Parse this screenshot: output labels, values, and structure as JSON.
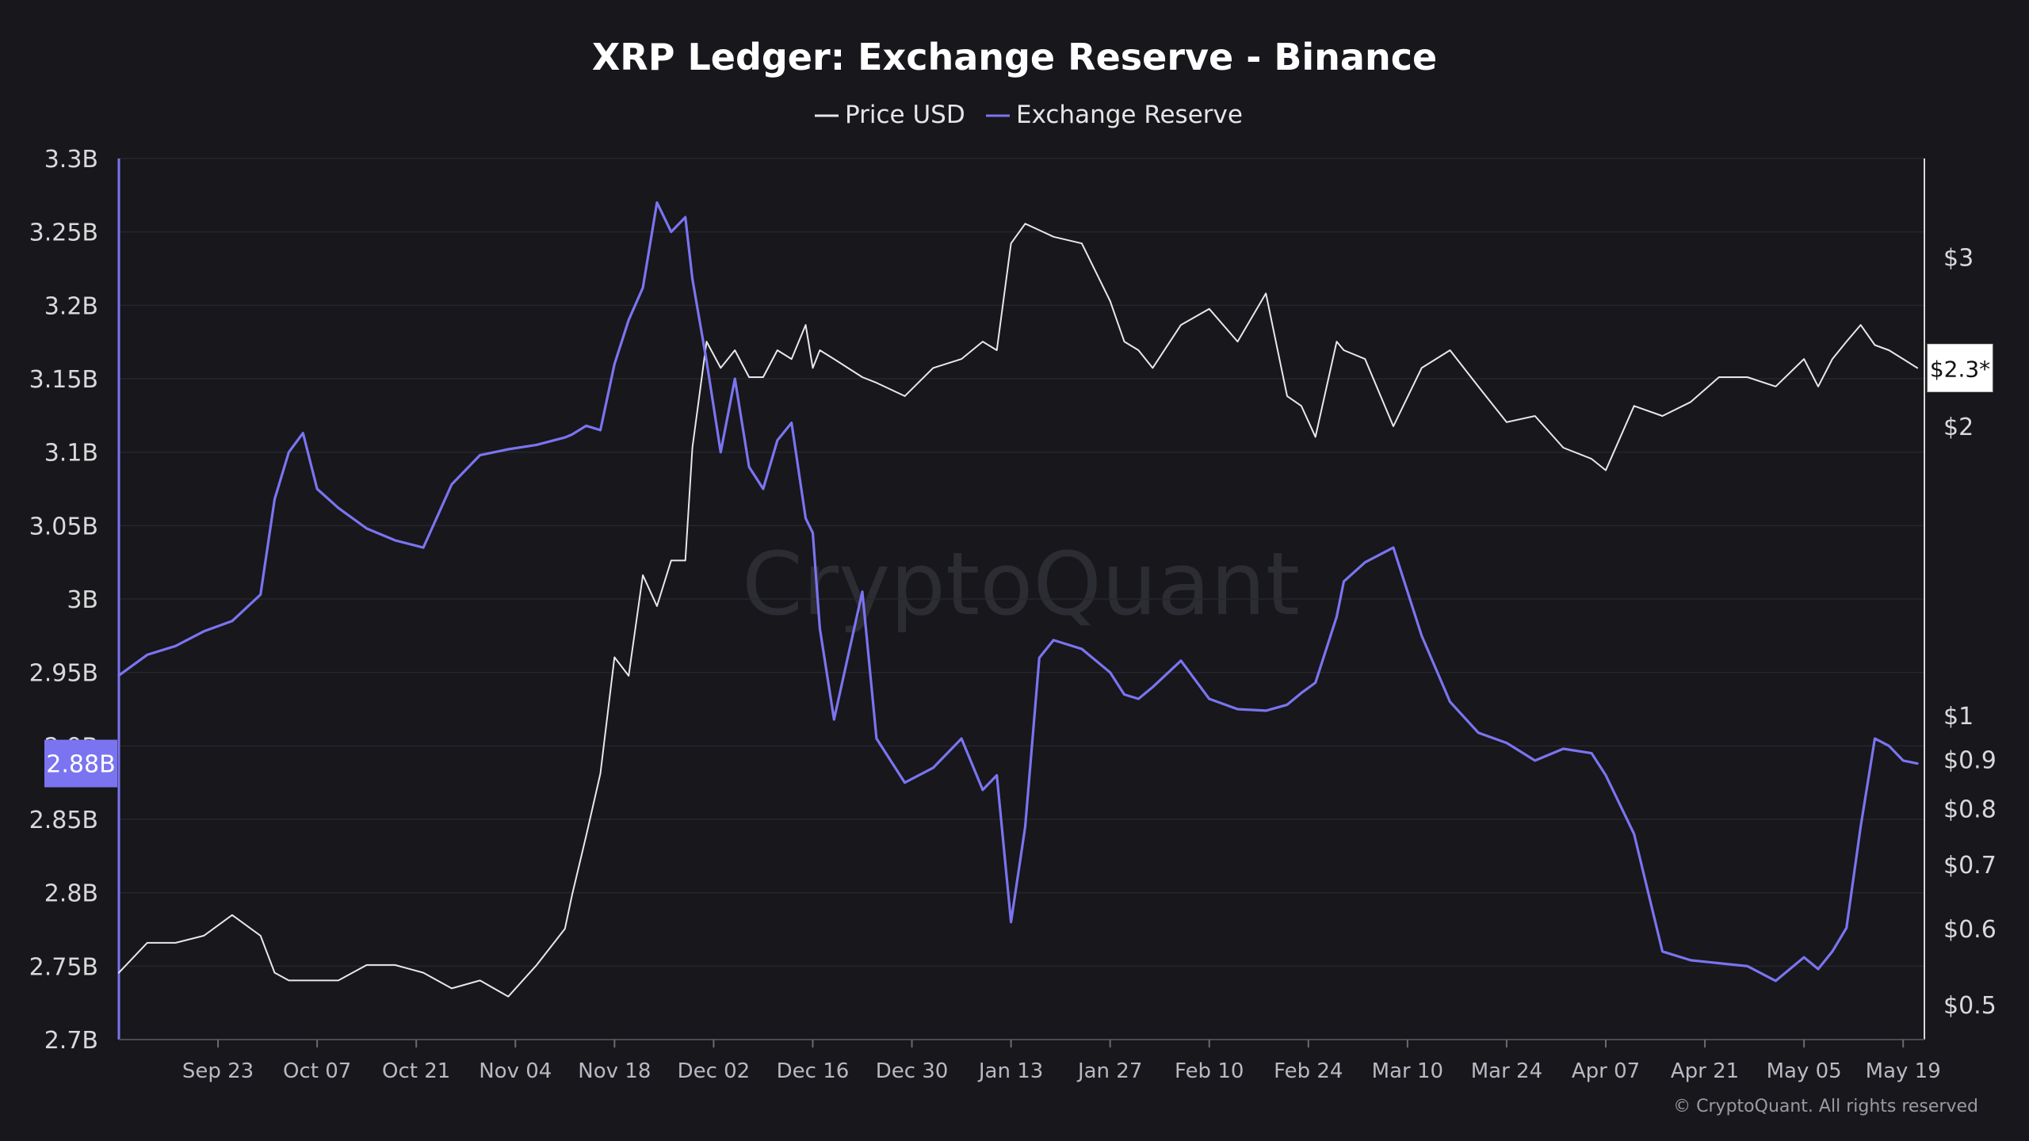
{
  "chart_data": {
    "type": "line",
    "title": "XRP Ledger: Exchange Reserve - Binance",
    "legend": [
      {
        "name": "Price USD",
        "color": "#e8e8e8"
      },
      {
        "name": "Exchange Reserve",
        "color": "#7b74f0"
      }
    ],
    "legend_placement": "top-center",
    "grid": true,
    "x_tick_labels": [
      "Sep 23",
      "Oct 07",
      "Oct 21",
      "Nov 04",
      "Nov 18",
      "Dec 02",
      "Dec 16",
      "Dec 30",
      "Jan 13",
      "Jan 27",
      "Feb 10",
      "Feb 24",
      "Mar 10",
      "Mar 24",
      "Apr 07",
      "Apr 21",
      "May 05",
      "May 19"
    ],
    "left_axis": {
      "label": "",
      "ticks": [
        "3.3B",
        "3.25B",
        "3.2B",
        "3.15B",
        "3.1B",
        "3.05B",
        "3B",
        "2.95B",
        "2.9B",
        "2.85B",
        "2.8B",
        "2.75B",
        "2.7B"
      ],
      "ylim": [
        2.7,
        3.3
      ],
      "unit": "B",
      "current_value_label": "2.88B",
      "color": "#7b74f0"
    },
    "right_axis": {
      "label": "",
      "scale": "log",
      "ticks": [
        "$3",
        "$2",
        "$1",
        "$0.9",
        "$0.8",
        "$0.7",
        "$0.6",
        "$0.5"
      ],
      "ylim": [
        0.46,
        3.8
      ],
      "current_value_label": "$2.3*"
    },
    "series": [
      {
        "name": "Exchange Reserve",
        "axis": "left",
        "unit": "billion",
        "x": [
          "2024-09-09",
          "2024-09-13",
          "2024-09-17",
          "2024-09-21",
          "2024-09-25",
          "2024-09-29",
          "2024-10-01",
          "2024-10-03",
          "2024-10-05",
          "2024-10-07",
          "2024-10-10",
          "2024-10-14",
          "2024-10-18",
          "2024-10-22",
          "2024-10-26",
          "2024-10-30",
          "2024-11-03",
          "2024-11-07",
          "2024-11-11",
          "2024-11-12",
          "2024-11-14",
          "2024-11-16",
          "2024-11-18",
          "2024-11-20",
          "2024-11-22",
          "2024-11-24",
          "2024-11-26",
          "2024-11-28",
          "2024-11-29",
          "2024-12-01",
          "2024-12-03",
          "2024-12-05",
          "2024-12-07",
          "2024-12-09",
          "2024-12-11",
          "2024-12-13",
          "2024-12-15",
          "2024-12-16",
          "2024-12-17",
          "2024-12-19",
          "2024-12-23",
          "2024-12-25",
          "2024-12-29",
          "2025-01-02",
          "2025-01-06",
          "2025-01-09",
          "2025-01-11",
          "2025-01-13",
          "2025-01-15",
          "2025-01-17",
          "2025-01-19",
          "2025-01-23",
          "2025-01-27",
          "2025-01-29",
          "2025-01-31",
          "2025-02-02",
          "2025-02-06",
          "2025-02-10",
          "2025-02-14",
          "2025-02-18",
          "2025-02-21",
          "2025-02-23",
          "2025-02-25",
          "2025-02-28",
          "2025-03-01",
          "2025-03-04",
          "2025-03-08",
          "2025-03-12",
          "2025-03-16",
          "2025-03-20",
          "2025-03-24",
          "2025-03-28",
          "2025-04-01",
          "2025-04-05",
          "2025-04-07",
          "2025-04-11",
          "2025-04-15",
          "2025-04-19",
          "2025-04-23",
          "2025-04-27",
          "2025-05-01",
          "2025-05-05",
          "2025-05-07",
          "2025-05-09",
          "2025-05-11",
          "2025-05-13",
          "2025-05-15",
          "2025-05-17",
          "2025-05-19",
          "2025-05-21"
        ],
        "values": [
          2.948,
          2.962,
          2.968,
          2.978,
          2.985,
          3.003,
          3.068,
          3.1,
          3.113,
          3.075,
          3.062,
          3.048,
          3.04,
          3.035,
          3.078,
          3.098,
          3.102,
          3.105,
          3.11,
          3.112,
          3.118,
          3.115,
          3.16,
          3.19,
          3.212,
          3.27,
          3.25,
          3.26,
          3.218,
          3.162,
          3.1,
          3.15,
          3.09,
          3.075,
          3.108,
          3.12,
          3.055,
          3.045,
          2.98,
          2.918,
          3.005,
          2.905,
          2.875,
          2.885,
          2.905,
          2.87,
          2.88,
          2.78,
          2.845,
          2.96,
          2.972,
          2.966,
          2.95,
          2.935,
          2.932,
          2.94,
          2.958,
          2.932,
          2.925,
          2.924,
          2.928,
          2.936,
          2.943,
          2.988,
          3.012,
          3.025,
          3.035,
          2.975,
          2.93,
          2.909,
          2.902,
          2.89,
          2.898,
          2.895,
          2.88,
          2.84,
          2.76,
          2.754,
          2.752,
          2.75,
          2.74,
          2.756,
          2.748,
          2.76,
          2.776,
          2.845,
          2.905,
          2.9,
          2.89,
          2.888
        ],
        "color": "#7b74f0"
      },
      {
        "name": "Price USD",
        "axis": "right",
        "unit": "USD",
        "x": [
          "2024-09-09",
          "2024-09-13",
          "2024-09-17",
          "2024-09-21",
          "2024-09-25",
          "2024-09-29",
          "2024-10-01",
          "2024-10-03",
          "2024-10-05",
          "2024-10-07",
          "2024-10-10",
          "2024-10-14",
          "2024-10-18",
          "2024-10-22",
          "2024-10-26",
          "2024-10-30",
          "2024-11-03",
          "2024-11-07",
          "2024-11-11",
          "2024-11-12",
          "2024-11-14",
          "2024-11-16",
          "2024-11-18",
          "2024-11-20",
          "2024-11-22",
          "2024-11-24",
          "2024-11-26",
          "2024-11-28",
          "2024-11-29",
          "2024-12-01",
          "2024-12-03",
          "2024-12-05",
          "2024-12-07",
          "2024-12-09",
          "2024-12-11",
          "2024-12-13",
          "2024-12-15",
          "2024-12-16",
          "2024-12-17",
          "2024-12-19",
          "2024-12-23",
          "2024-12-25",
          "2024-12-29",
          "2025-01-02",
          "2025-01-06",
          "2025-01-09",
          "2025-01-11",
          "2025-01-13",
          "2025-01-15",
          "2025-01-17",
          "2025-01-19",
          "2025-01-23",
          "2025-01-27",
          "2025-01-29",
          "2025-01-31",
          "2025-02-02",
          "2025-02-06",
          "2025-02-10",
          "2025-02-14",
          "2025-02-18",
          "2025-02-21",
          "2025-02-23",
          "2025-02-25",
          "2025-02-28",
          "2025-03-01",
          "2025-03-04",
          "2025-03-08",
          "2025-03-12",
          "2025-03-16",
          "2025-03-20",
          "2025-03-24",
          "2025-03-28",
          "2025-04-01",
          "2025-04-05",
          "2025-04-07",
          "2025-04-11",
          "2025-04-15",
          "2025-04-19",
          "2025-04-23",
          "2025-04-27",
          "2025-05-01",
          "2025-05-05",
          "2025-05-07",
          "2025-05-09",
          "2025-05-11",
          "2025-05-13",
          "2025-05-15",
          "2025-05-17",
          "2025-05-19",
          "2025-05-21"
        ],
        "values": [
          0.54,
          0.58,
          0.58,
          0.59,
          0.62,
          0.59,
          0.54,
          0.53,
          0.53,
          0.53,
          0.53,
          0.55,
          0.55,
          0.54,
          0.52,
          0.53,
          0.51,
          0.55,
          0.6,
          0.65,
          0.75,
          0.87,
          1.15,
          1.1,
          1.4,
          1.3,
          1.45,
          1.45,
          1.9,
          2.45,
          2.3,
          2.4,
          2.25,
          2.25,
          2.4,
          2.35,
          2.55,
          2.3,
          2.4,
          2.35,
          2.25,
          2.22,
          2.15,
          2.3,
          2.35,
          2.45,
          2.4,
          3.1,
          3.25,
          3.2,
          3.15,
          3.1,
          2.7,
          2.45,
          2.4,
          2.3,
          2.55,
          2.65,
          2.45,
          2.75,
          2.15,
          2.1,
          1.95,
          2.45,
          2.4,
          2.35,
          2.0,
          2.3,
          2.4,
          2.2,
          2.02,
          2.05,
          1.9,
          1.85,
          1.8,
          2.1,
          2.05,
          2.12,
          2.25,
          2.25,
          2.2,
          2.35,
          2.2,
          2.35,
          2.45,
          2.55,
          2.43,
          2.4,
          2.35,
          2.3
        ],
        "color": "#e8e8e8"
      }
    ]
  },
  "watermark": "CryptoQuant",
  "credit": "© CryptoQuant. All rights reserved"
}
